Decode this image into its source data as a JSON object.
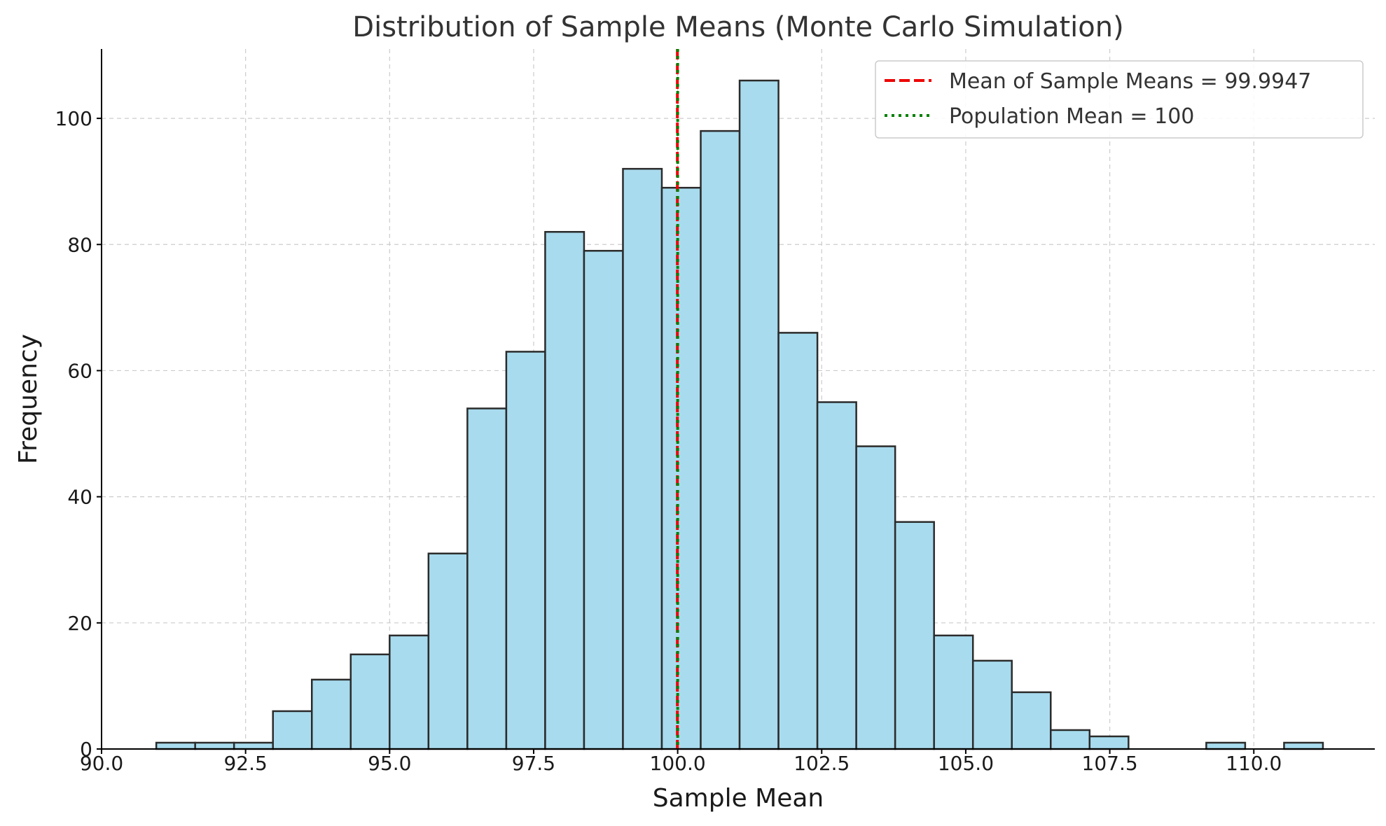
{
  "chart_data": {
    "type": "histogram",
    "title": "Distribution of Sample Means (Monte Carlo Simulation)",
    "xlabel": "Sample Mean",
    "ylabel": "Frequency",
    "xlim": [
      90.0,
      112.1
    ],
    "ylim": [
      0,
      111
    ],
    "xticks": [
      90.0,
      92.5,
      95.0,
      97.5,
      100.0,
      102.5,
      105.0,
      107.5,
      110.0
    ],
    "xtick_labels": [
      "90.0",
      "92.5",
      "95.0",
      "97.5",
      "100.0",
      "102.5",
      "105.0",
      "107.5",
      "110.0"
    ],
    "yticks": [
      0,
      20,
      40,
      60,
      80,
      100
    ],
    "ytick_labels": [
      "0",
      "20",
      "40",
      "60",
      "80",
      "100"
    ],
    "grid": true,
    "bar_color": "#a8dbee",
    "bar_edge_color": "#2b2b2b",
    "bins_start": 90.95,
    "bin_width": 0.675,
    "counts": [
      1,
      1,
      1,
      6,
      11,
      15,
      18,
      31,
      54,
      63,
      82,
      79,
      92,
      89,
      98,
      106,
      66,
      55,
      48,
      36,
      18,
      14,
      9,
      3,
      2,
      0,
      0,
      1,
      0,
      1
    ],
    "vlines": [
      {
        "x": 99.9947,
        "label": "Mean of Sample Means = 99.9947",
        "color": "#ee0000",
        "style": "dashed"
      },
      {
        "x": 100,
        "label": "Population Mean = 100",
        "color": "#008000",
        "style": "dotted"
      }
    ],
    "legend_position": "top-right"
  }
}
